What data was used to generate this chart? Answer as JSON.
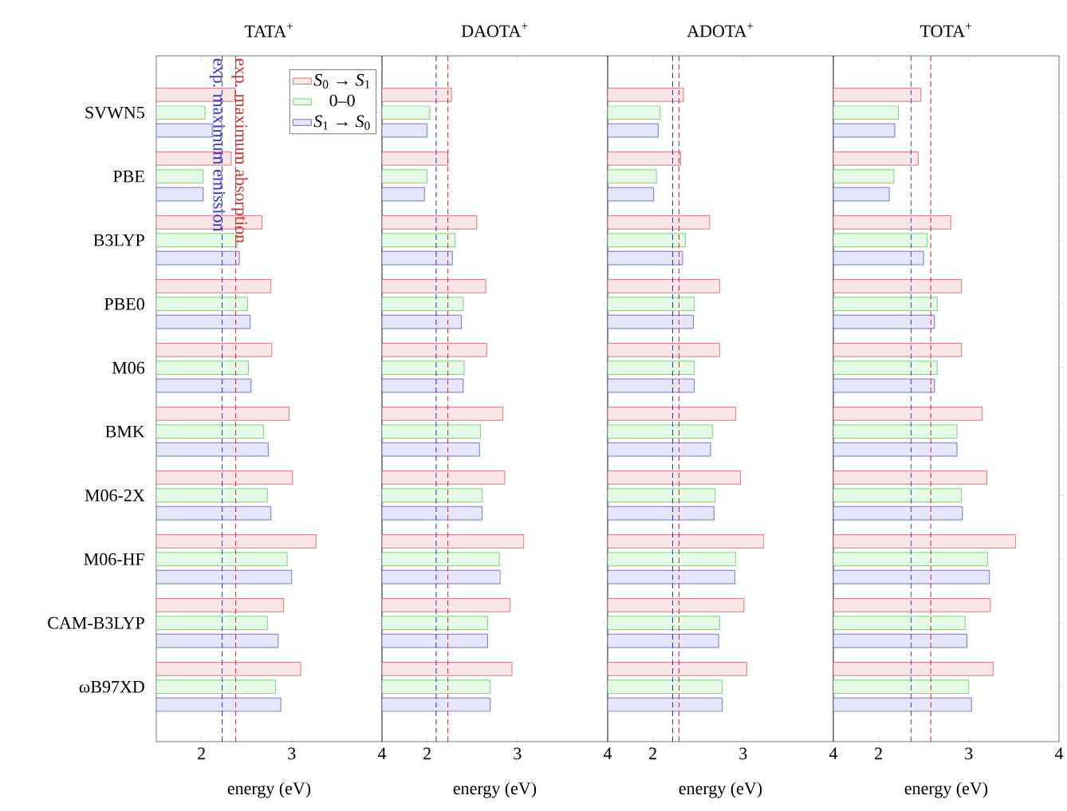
{
  "chart_data": [
    {
      "type": "bar",
      "orientation": "horizontal",
      "title": "TATA$^{+}$",
      "xlabel": "energy (eV)",
      "categories": [
        "SVWN5",
        "PBE",
        "B3LYP",
        "PBE0",
        "M06",
        "BMK",
        "M06-2X",
        "M06-HF",
        "CAM-B3LYP",
        "ωB97XD"
      ],
      "series": [
        {
          "name": "*S*$_{0}$ → *S*$_{1}$",
          "color": "#fae6e6",
          "values": [
            2.37,
            2.33,
            2.67,
            2.77,
            2.78,
            2.97,
            3.01,
            3.27,
            2.91,
            3.1
          ]
        },
        {
          "name": "0–0",
          "color": "#e6f8e6",
          "values": [
            2.04,
            2.02,
            2.4,
            2.51,
            2.52,
            2.69,
            2.73,
            2.95,
            2.73,
            2.82
          ]
        },
        {
          "name": "*S*$_{1}$ → *S*$_{0}$",
          "color": "#e6e6f8",
          "values": [
            2.12,
            2.02,
            2.42,
            2.54,
            2.55,
            2.74,
            2.77,
            3.0,
            2.85,
            2.88
          ]
        }
      ],
      "xlim": [
        1.5,
        4
      ],
      "xticks": [
        2,
        3,
        4
      ],
      "legend": "top right",
      "ref_lines": [
        {
          "axis": "x",
          "value": 2.23,
          "label": "exp. maximum emission",
          "color": "#3333cc",
          "line_style": "dashed"
        },
        {
          "axis": "x",
          "value": 2.38,
          "label": "exp. maximum absorption",
          "color": "#cc3333",
          "line_style": "dashed"
        }
      ]
    },
    {
      "type": "bar",
      "orientation": "horizontal",
      "title": "DAOTA$^{+}$",
      "xlabel": "energy (eV)",
      "categories": [
        null,
        null,
        null,
        null,
        null,
        null,
        null,
        null,
        null,
        null
      ],
      "series": [
        {
          "color": "#fae6e6",
          "values": [
            2.27,
            2.23,
            2.55,
            2.65,
            2.66,
            2.84,
            2.86,
            3.07,
            2.92,
            2.94
          ]
        },
        {
          "color": "#e6f8e6",
          "values": [
            2.03,
            2.0,
            2.31,
            2.4,
            2.41,
            2.59,
            2.61,
            2.8,
            2.67,
            2.7
          ]
        },
        {
          "color": "#e6e6f8",
          "values": [
            2.0,
            1.97,
            2.28,
            2.38,
            2.4,
            2.58,
            2.61,
            2.81,
            2.67,
            2.7
          ]
        }
      ],
      "xlim": [
        1.5,
        4
      ],
      "xticks": [
        2,
        3,
        4
      ],
      "tick_labels": "x",
      "ref_lines": [
        {
          "axis": "x",
          "value": 2.1,
          "color": "#3333cc",
          "line_style": "dashed"
        },
        {
          "axis": "x",
          "value": 2.23,
          "color": "#cc3333",
          "line_style": "dashed"
        }
      ]
    },
    {
      "type": "bar",
      "orientation": "horizontal",
      "title": "ADOTA$^{+}$",
      "xlabel": "energy (eV)",
      "categories": [
        null,
        null,
        null,
        null,
        null,
        null,
        null,
        null,
        null,
        null
      ],
      "series": [
        {
          "color": "#fae6e6",
          "values": [
            2.34,
            2.31,
            2.63,
            2.74,
            2.74,
            2.92,
            2.97,
            3.23,
            3.01,
            3.04
          ]
        },
        {
          "color": "#e6f8e6",
          "values": [
            2.08,
            2.04,
            2.36,
            2.46,
            2.46,
            2.66,
            2.69,
            2.92,
            2.74,
            2.77
          ]
        },
        {
          "color": "#e6e6f8",
          "values": [
            2.06,
            2.01,
            2.33,
            2.45,
            2.46,
            2.64,
            2.68,
            2.91,
            2.73,
            2.77
          ]
        }
      ],
      "xlim": [
        1.5,
        4
      ],
      "xticks": [
        2,
        3,
        4
      ],
      "tick_labels": "x",
      "ref_lines": [
        {
          "axis": "x",
          "value": 2.22,
          "color": "#3333cc",
          "line_style": "dashed"
        },
        {
          "axis": "x",
          "value": 2.29,
          "color": "#cc3333",
          "line_style": "dashed"
        }
      ]
    },
    {
      "type": "bar",
      "orientation": "horizontal",
      "title": "TOTA$^{+}$",
      "xlabel": "energy (eV)",
      "categories": [
        null,
        null,
        null,
        null,
        null,
        null,
        null,
        null,
        null,
        null
      ],
      "series": [
        {
          "color": "#fae6e6",
          "values": [
            2.47,
            2.44,
            2.8,
            2.92,
            2.92,
            3.15,
            3.2,
            3.52,
            3.24,
            3.27
          ]
        },
        {
          "color": "#e6f8e6",
          "values": [
            2.22,
            2.17,
            2.54,
            2.65,
            2.65,
            2.87,
            2.92,
            3.21,
            2.96,
            3.0
          ]
        },
        {
          "color": "#e6e6f8",
          "values": [
            2.18,
            2.12,
            2.5,
            2.62,
            2.62,
            2.87,
            2.93,
            3.23,
            2.98,
            3.03
          ]
        }
      ],
      "xlim": [
        1.5,
        4
      ],
      "xticks": [
        2,
        3,
        4
      ],
      "tick_labels": "x",
      "ref_lines": [
        {
          "axis": "x",
          "value": 2.36,
          "color": "#3333cc",
          "line_style": "dashed"
        },
        {
          "axis": "x",
          "value": 2.58,
          "color": "#cc3333",
          "line_style": "dashed"
        }
      ]
    }
  ]
}
